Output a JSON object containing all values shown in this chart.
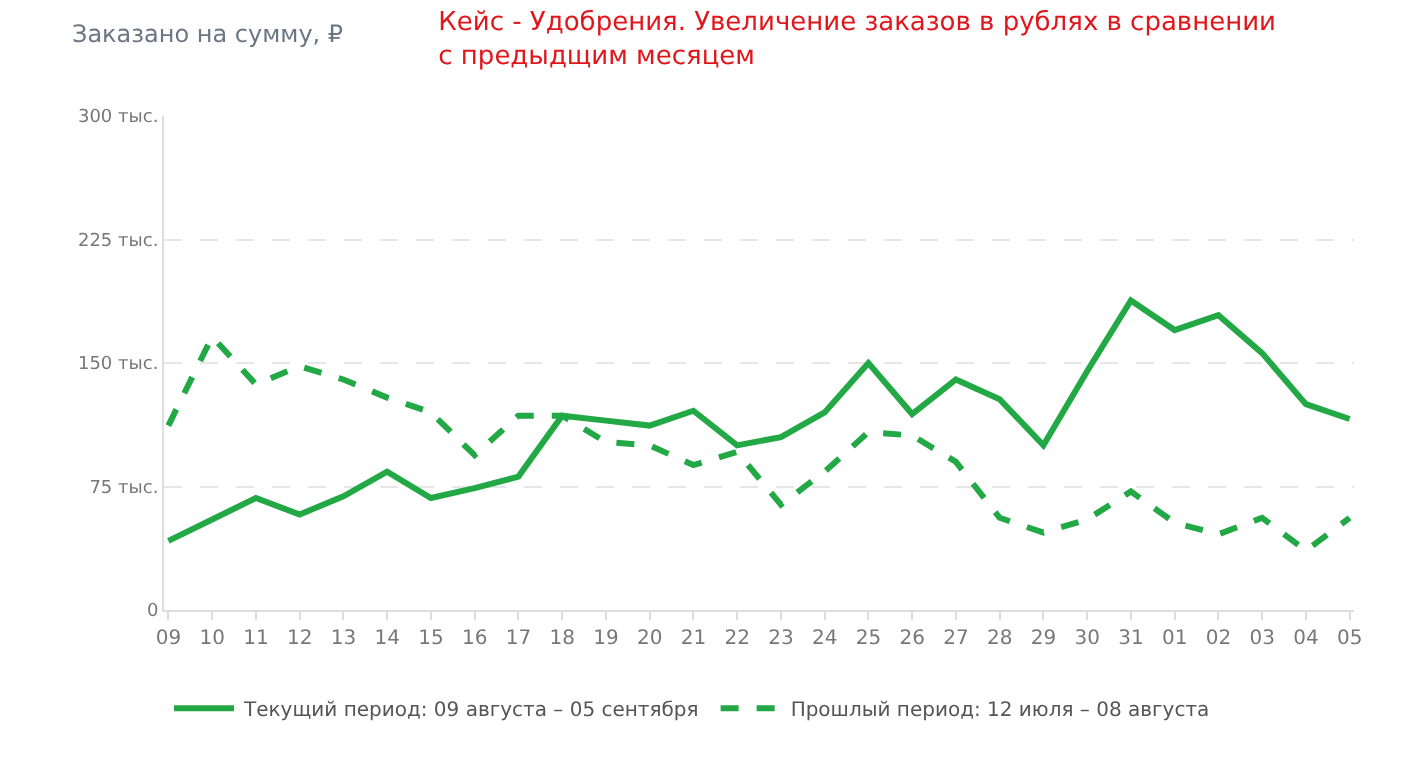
{
  "chart_data": {
    "type": "line",
    "title": "Кейс - Удобрения. Увеличение заказов в рублях в сравнении\nс предыдщим месяцем",
    "ylabel": "Заказано на сумму, ₽",
    "categories": [
      "09",
      "10",
      "11",
      "12",
      "13",
      "14",
      "15",
      "16",
      "17",
      "18",
      "19",
      "20",
      "21",
      "22",
      "23",
      "24",
      "25",
      "26",
      "27",
      "28",
      "29",
      "30",
      "31",
      "01",
      "02",
      "03",
      "04",
      "05"
    ],
    "series": [
      {
        "name": "Текущий период: 09 августа – 05 сентября",
        "color": "#22a845",
        "line_style": "solid",
        "values": [
          42,
          55,
          68,
          58,
          69,
          84,
          68,
          74,
          81,
          118,
          115,
          112,
          121,
          100,
          105,
          120,
          150,
          119,
          140,
          128,
          100,
          145,
          188,
          170,
          179,
          156,
          125,
          116
        ]
      },
      {
        "name": "Прошлый период: 12 июля – 08 августа",
        "color": "#22a845",
        "line_style": "dashed",
        "values": [
          112,
          166,
          137,
          148,
          140,
          129,
          120,
          94,
          118,
          118,
          102,
          100,
          88,
          96,
          64,
          84,
          108,
          106,
          90,
          56,
          47,
          55,
          72,
          53,
          46,
          56,
          36,
          56
        ]
      }
    ],
    "ylim": [
      0,
      300
    ],
    "yticks": [
      0,
      {
        "value": 75,
        "label": "75 тыс."
      },
      {
        "value": 150,
        "label": "150 тыс."
      },
      {
        "value": 225,
        "label": "225 тыс."
      },
      {
        "value": 300,
        "label": "300 тыс."
      }
    ],
    "grid": "y",
    "legend": "bottom left",
    "marker": "none"
  }
}
